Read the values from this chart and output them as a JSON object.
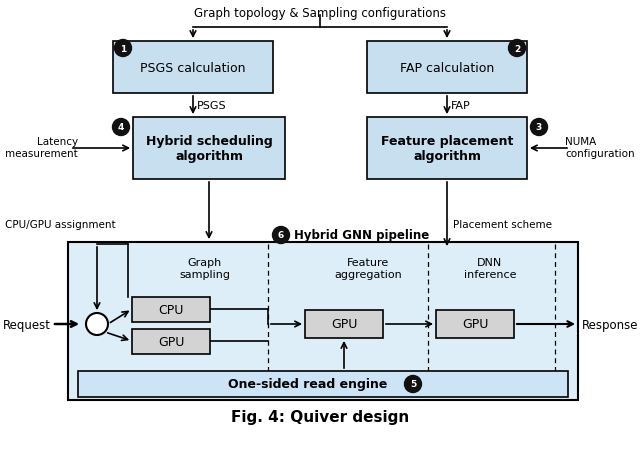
{
  "title": "Fig. 4: Quiver design",
  "bg_color": "#ffffff",
  "box_fill_light": "#c8dff0",
  "box_fill_gray": "#d3d3d3",
  "pipeline_bg": "#ddeef8",
  "ose_fill": "#cce4f5",
  "box_stroke": "#000000",
  "text_color": "#000000",
  "badge_fill": "#111111",
  "badge_text": "#ffffff",
  "top_label": "Graph topology & Sampling configurations",
  "box1_label": "PSGS calculation",
  "box2_label": "FAP calculation",
  "box4_label": "Hybrid scheduling\nalgorithm",
  "box3_label": "Feature placement\nalgorithm",
  "label_psgs": "PSGS",
  "label_fap": "FAP",
  "label_latency": "Latency\nmeasurement",
  "label_numa": "NUMA\nconfiguration",
  "label_cpu_gpu": "CPU/GPU assignment",
  "label_placement": "Placement scheme",
  "badge6_label": "Hybrid GNN pipeline",
  "label_graph_samp": "Graph\nsampling",
  "label_feat_agg": "Feature\naggregation",
  "label_dnn": "DNN\ninference",
  "label_cpu": "CPU",
  "label_gpu": "GPU",
  "label_ose": "One-sided read engine",
  "label_request": "Request",
  "label_response": "Response"
}
